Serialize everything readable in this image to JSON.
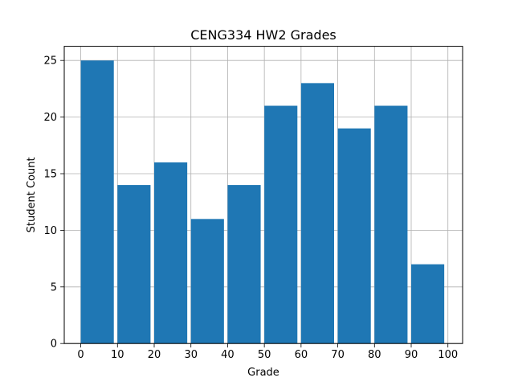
{
  "chart_data": {
    "type": "bar",
    "title": "CENG334 HW2 Grades",
    "xlabel": "Grade",
    "ylabel": "Student Count",
    "bins": [
      {
        "start": 0,
        "end": 10,
        "count": 25
      },
      {
        "start": 10,
        "end": 20,
        "count": 14
      },
      {
        "start": 20,
        "end": 30,
        "count": 16
      },
      {
        "start": 30,
        "end": 40,
        "count": 11
      },
      {
        "start": 40,
        "end": 50,
        "count": 14
      },
      {
        "start": 50,
        "end": 60,
        "count": 21
      },
      {
        "start": 60,
        "end": 70,
        "count": 23
      },
      {
        "start": 70,
        "end": 80,
        "count": 19
      },
      {
        "start": 80,
        "end": 90,
        "count": 21
      },
      {
        "start": 90,
        "end": 100,
        "count": 7
      }
    ],
    "bar_width_fraction": 0.9,
    "xlim": [
      -4.5,
      104
    ],
    "ylim": [
      0,
      26.25
    ],
    "xticks": [
      0,
      10,
      20,
      30,
      40,
      50,
      60,
      70,
      80,
      90,
      100
    ],
    "yticks": [
      0,
      5,
      10,
      15,
      20,
      25
    ],
    "grid": true,
    "bar_color": "#1f77b4",
    "grid_color": "#b0b0b0"
  }
}
